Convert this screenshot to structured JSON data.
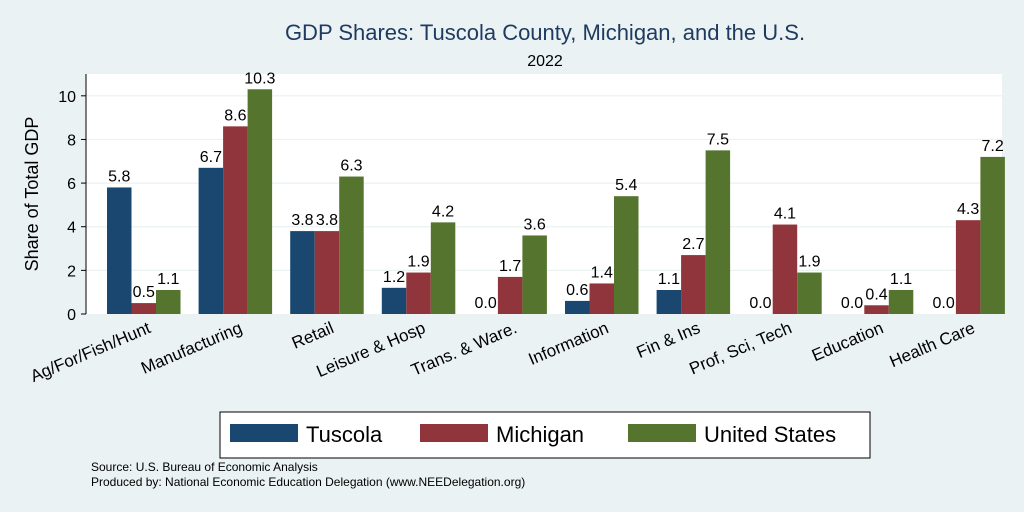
{
  "chart_data": {
    "type": "bar",
    "title": "GDP Shares: Tuscola County, Michigan, and the U.S.",
    "subtitle": "2022",
    "ylabel": "Share of Total GDP",
    "xlabel": "",
    "ylim": [
      0,
      11
    ],
    "yticks": [
      0,
      2,
      4,
      6,
      8,
      10
    ],
    "grid": true,
    "legend_position": "bottom",
    "categories": [
      "Ag/For/Fish/Hunt",
      "Manufacturing",
      "Retail",
      "Leisure & Hosp",
      "Trans. & Ware.",
      "Information",
      "Fin & Ins",
      "Prof, Sci, Tech",
      "Education",
      "Health Care"
    ],
    "series": [
      {
        "name": "Tuscola",
        "color": "#1a476f",
        "values": [
          5.8,
          6.7,
          3.8,
          1.2,
          0.0,
          0.6,
          1.1,
          0.0,
          0.0,
          0.0
        ],
        "labels": [
          "5.8",
          "6.7",
          "3.8",
          "1.2",
          "0.0",
          "0.6",
          "1.1",
          "0.0",
          "0.0",
          "0.0"
        ]
      },
      {
        "name": "Michigan",
        "color": "#90353b",
        "values": [
          0.5,
          8.6,
          3.8,
          1.9,
          1.7,
          1.4,
          2.7,
          4.1,
          0.4,
          4.3
        ],
        "labels": [
          "0.5",
          "8.6",
          "3.8",
          "1.9",
          "1.7",
          "1.4",
          "2.7",
          "4.1",
          "0.4",
          "4.3"
        ]
      },
      {
        "name": "United States",
        "color": "#55752f",
        "values": [
          1.1,
          10.3,
          6.3,
          4.2,
          3.6,
          5.4,
          7.5,
          1.9,
          1.1,
          7.2
        ],
        "labels": [
          "1.1",
          "10.3",
          "6.3",
          "4.2",
          "3.6",
          "5.4",
          "7.5",
          "1.9",
          "1.1",
          "7.2"
        ]
      }
    ]
  },
  "footer": {
    "source": "Source: U.S. Bureau of Economic Analysis",
    "produced_by": "Produced by: National Economic Education Delegation (www.NEEDelegation.org)"
  }
}
